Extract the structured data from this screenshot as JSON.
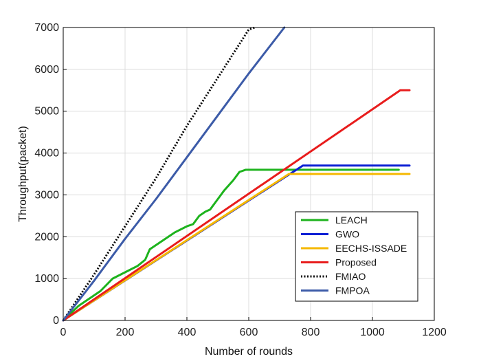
{
  "chart_data": {
    "type": "line",
    "title": "",
    "xlabel": "Number of rounds",
    "ylabel": "Throughput(packet)",
    "xlim": [
      0,
      1200
    ],
    "ylim": [
      0,
      7000
    ],
    "xticks": [
      0,
      200,
      400,
      600,
      800,
      1000,
      1200
    ],
    "yticks": [
      0,
      1000,
      2000,
      3000,
      4000,
      5000,
      6000,
      7000
    ],
    "grid": true,
    "legend_position": "bottom-right",
    "series": [
      {
        "name": "LEACH",
        "color": "#1db31d",
        "style": "solid",
        "x": [
          0,
          50,
          100,
          120,
          160,
          200,
          240,
          265,
          280,
          320,
          360,
          400,
          420,
          440,
          460,
          475,
          500,
          520,
          550,
          570,
          590,
          610,
          700,
          800,
          900,
          1000,
          1085
        ],
        "y": [
          0,
          350,
          600,
          700,
          1000,
          1150,
          1300,
          1450,
          1700,
          1900,
          2100,
          2250,
          2300,
          2500,
          2600,
          2650,
          2900,
          3100,
          3350,
          3550,
          3600,
          3600,
          3600,
          3600,
          3600,
          3600,
          3600
        ]
      },
      {
        "name": "GWO",
        "color": "#0b1fd4",
        "style": "solid",
        "x": [
          0,
          750,
          775,
          900,
          1000,
          1120
        ],
        "y": [
          0,
          3580,
          3700,
          3700,
          3700,
          3700
        ]
      },
      {
        "name": "EECHS-ISSADE",
        "color": "#f5b800",
        "style": "solid",
        "x": [
          0,
          730,
          800,
          900,
          1000,
          1120
        ],
        "y": [
          0,
          3500,
          3500,
          3500,
          3500,
          3500
        ]
      },
      {
        "name": "Proposed",
        "color": "#e81c1c",
        "style": "solid",
        "x": [
          0,
          1090,
          1120
        ],
        "y": [
          0,
          5500,
          5500
        ]
      },
      {
        "name": "FMIAO",
        "color": "#000000",
        "style": "dotted",
        "x": [
          0,
          100,
          200,
          300,
          400,
          500,
          600,
          620
        ],
        "y": [
          0,
          1100,
          2250,
          3400,
          4650,
          5800,
          6950,
          7100
        ]
      },
      {
        "name": "FMPOA",
        "color": "#3c5ba8",
        "style": "solid",
        "x": [
          0,
          100,
          200,
          300,
          400,
          500,
          600,
          715
        ],
        "y": [
          0,
          950,
          1950,
          2900,
          3900,
          4900,
          5900,
          7000
        ]
      }
    ]
  }
}
